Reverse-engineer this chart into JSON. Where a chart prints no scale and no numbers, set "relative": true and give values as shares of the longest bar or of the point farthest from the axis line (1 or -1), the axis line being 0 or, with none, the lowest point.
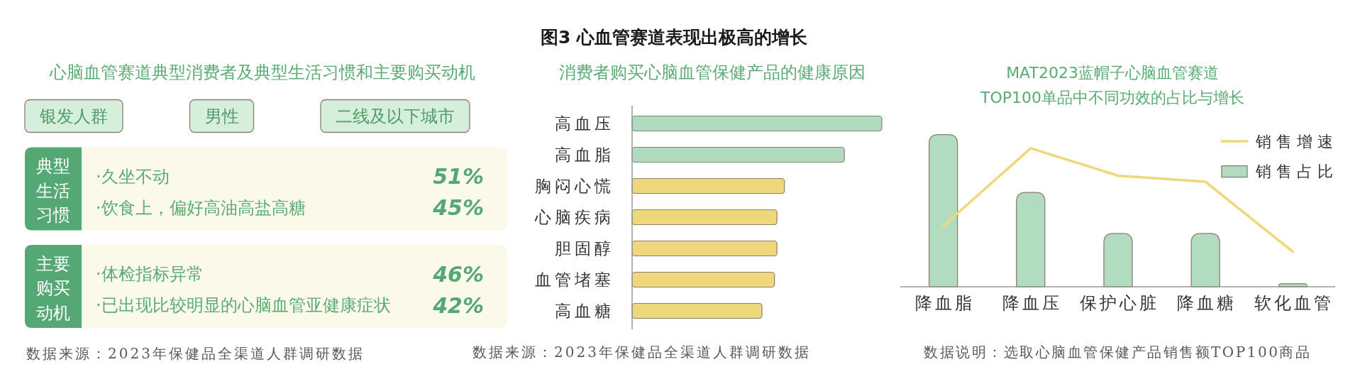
{
  "chart_data": [
    {
      "type": "other",
      "title": "心脑血管赛道典型消费者及典型生活习惯和主要购买动机",
      "categories": [
        "·久坐不动",
        "·饮食上，偏好高油高盐高糖",
        "·体检指标异常",
        "·已出现比较明显的心脑血管亚健康症状"
      ],
      "series": [
        {
          "name": "典型生活习惯",
          "values": [
            51,
            45,
            null,
            null
          ],
          "value_labels": [
            "51%",
            "45%",
            null,
            null
          ]
        },
        {
          "name": "主要购买动机",
          "values": [
            null,
            null,
            46,
            42
          ],
          "value_labels": [
            null,
            null,
            "46%",
            "42%"
          ]
        }
      ],
      "annotations": [
        "银发人群",
        "男性",
        "二线及以下城市",
        "数据来源：2023年保健品全渠道人群调研数据"
      ]
    },
    {
      "type": "bar",
      "orientation": "horizontal",
      "relative": true,
      "title": "图3 心血管赛道表现出极高的增长",
      "subtitle": "消费者购买心脑血管保健产品的健康原因",
      "categories": [
        "高血压",
        "高血脂",
        "胸闷心慌",
        "心脑疾病",
        "胆固醇",
        "血管堵塞",
        "高血糖"
      ],
      "values": [
        1,
        0.85,
        0.61,
        0.58,
        0.58,
        0.57,
        0.52
      ],
      "colors": [
        "#b1dbbf",
        "#b1dbbf",
        "#efd87b",
        "#efd87b",
        "#efd87b",
        "#efd87b",
        "#efd87b"
      ],
      "annotations": [
        "数据来源：2023年保健品全渠道人群调研数据"
      ]
    },
    {
      "type": "bar",
      "relative": true,
      "title": "MAT2023蓝帽子心脑血管赛道\nTOP100单品中不同功效的占比与增长",
      "categories": [
        "降血脂",
        "降血压",
        "保护心脏",
        "降血糖",
        "软化血管"
      ],
      "series": [
        {
          "name": "销售增速",
          "type": "line",
          "color": "#efd87a",
          "values": [
            0.4,
            0.91,
            0.73,
            0.69,
            0.23
          ]
        },
        {
          "name": "销售占比",
          "type": "bar",
          "color": "#b2dcc0",
          "values": [
            1,
            0.62,
            0.35,
            0.35,
            0.02
          ]
        }
      ],
      "legend": "top right",
      "annotations": [
        "数据说明：选取心脑血管保健产品销售额TOP100商品"
      ]
    }
  ]
}
